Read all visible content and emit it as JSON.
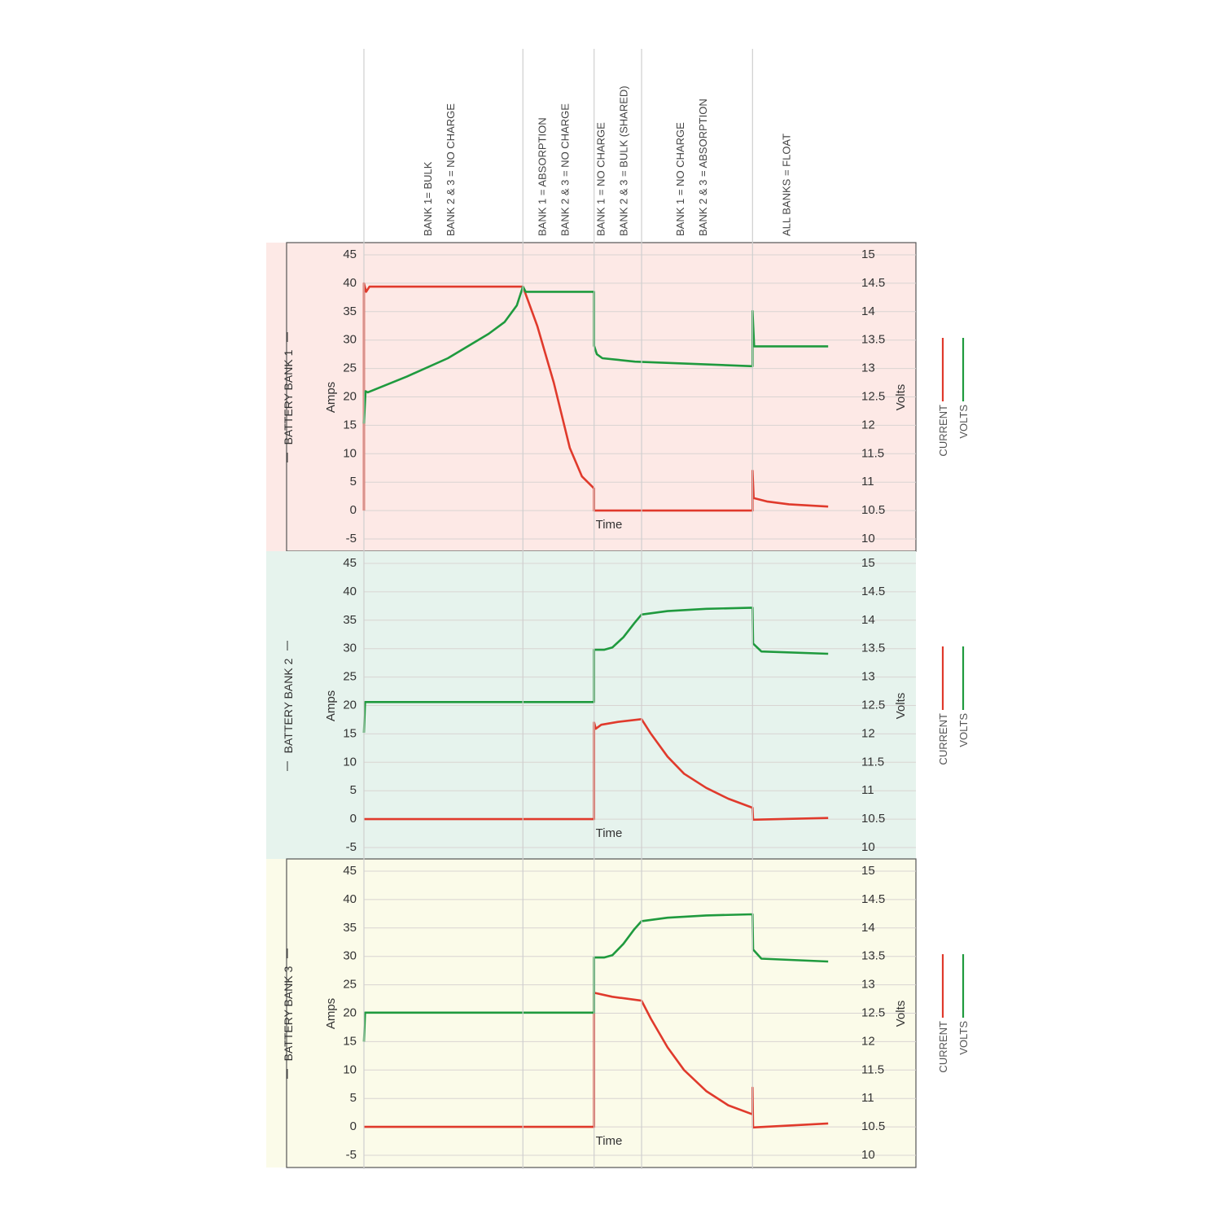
{
  "phases": [
    {
      "start": 0,
      "label": [
        "BANK 1= BULK",
        "BANK 2 & 3 = NO CHARGE"
      ]
    },
    {
      "start": 28.8,
      "label": [
        "BANK 1 = ABSORPTION",
        "BANK 2 & 3 = NO CHARGE"
      ]
    },
    {
      "start": 41.7,
      "label": [
        "BANK 1 = NO CHARGE",
        "BANK 2 & 3 = BULK (SHARED)"
      ]
    },
    {
      "start": 50.3,
      "label": [
        "BANK 1 = NO CHARGE",
        "BANK 2 & 3 = ABSORPTION"
      ]
    },
    {
      "start": 70.4,
      "label": [
        "ALL BANKS = FLOAT"
      ]
    }
  ],
  "chart_data": [
    {
      "type": "line",
      "title": "BATTERY BANK 1",
      "xlabel": "Time",
      "ylabel": "Amps",
      "y2label": "Volts",
      "background": "#fde9e6",
      "grid": true,
      "xlim": [
        0,
        100
      ],
      "ylim": [
        -5,
        45
      ],
      "yticks": [
        -5,
        0,
        5,
        10,
        15,
        20,
        25,
        30,
        35,
        40,
        45
      ],
      "y2lim": [
        10,
        15
      ],
      "y2ticks": [
        10,
        10.5,
        11,
        11.5,
        12,
        12.5,
        13,
        13.5,
        14,
        14.5,
        15
      ],
      "series": [
        {
          "name": "CURRENT",
          "color": "#e03a2c",
          "axis": "y",
          "x": [
            0,
            0,
            0.4,
            1,
            28.8,
            31.4,
            34.4,
            37.3,
            39.5,
            41.7,
            41.7,
            70.4,
            70.4,
            70.6,
            73,
            77,
            84.1
          ],
          "values": [
            0,
            40,
            38.5,
            39.4,
            39.4,
            32.5,
            22.5,
            11,
            6,
            3.9,
            0,
            0,
            7,
            2.2,
            1.6,
            1.1,
            0.7
          ]
        },
        {
          "name": "VOLTS",
          "color": "#1f9a3e",
          "axis": "y2",
          "x": [
            0,
            0.3,
            0.7,
            7.8,
            15.2,
            22.6,
            25.5,
            27.7,
            28.8,
            29.3,
            41.7,
            41.7,
            42.2,
            43.2,
            46.2,
            49.1,
            70.4,
            70.4,
            70.7,
            84.1
          ],
          "values": [
            12.03,
            12.6,
            12.58,
            12.86,
            13.18,
            13.61,
            13.82,
            14.11,
            14.44,
            14.35,
            14.35,
            13.4,
            13.25,
            13.18,
            13.15,
            13.12,
            13.04,
            14.01,
            13.39,
            13.39
          ]
        }
      ]
    },
    {
      "type": "line",
      "title": "BATTERY BANK 2",
      "xlabel": "Time",
      "ylabel": "Amps",
      "y2label": "Volts",
      "background": "#e6f3ed",
      "grid": true,
      "xlim": [
        0,
        100
      ],
      "ylim": [
        -5,
        45
      ],
      "yticks": [
        -5,
        0,
        5,
        10,
        15,
        20,
        25,
        30,
        35,
        40,
        45
      ],
      "y2lim": [
        10,
        15
      ],
      "y2ticks": [
        10,
        10.5,
        11,
        11.5,
        12,
        12.5,
        13,
        13.5,
        14,
        14.5,
        15
      ],
      "series": [
        {
          "name": "CURRENT",
          "color": "#e03a2c",
          "axis": "y",
          "x": [
            0,
            41.7,
            41.7,
            42,
            43,
            46,
            50.3,
            52,
            55,
            58,
            62,
            66,
            70.4,
            70.5,
            84.1
          ],
          "values": [
            0,
            0,
            17,
            15.9,
            16.6,
            17.1,
            17.6,
            15,
            11,
            8,
            5.5,
            3.6,
            2.0,
            -0.1,
            0.2
          ]
        },
        {
          "name": "VOLTS",
          "color": "#1f9a3e",
          "axis": "y2",
          "x": [
            0,
            0.2,
            41.7,
            41.7,
            43.5,
            45,
            47,
            49,
            50.3,
            55,
            62,
            70.4,
            70.5,
            72,
            84.1
          ],
          "values": [
            12.02,
            12.56,
            12.56,
            13.48,
            13.48,
            13.52,
            13.7,
            13.95,
            14.1,
            14.16,
            14.2,
            14.22,
            13.59,
            13.45,
            13.41
          ]
        }
      ]
    },
    {
      "type": "line",
      "title": "BATTERY BANK 3",
      "xlabel": "Time",
      "ylabel": "Amps",
      "y2label": "Volts",
      "background": "#fbfbe9",
      "grid": true,
      "xlim": [
        0,
        100
      ],
      "ylim": [
        -5,
        45
      ],
      "yticks": [
        -5,
        0,
        5,
        10,
        15,
        20,
        25,
        30,
        35,
        40,
        45
      ],
      "y2lim": [
        10,
        15
      ],
      "y2ticks": [
        10,
        10.5,
        11,
        11.5,
        12,
        12.5,
        13,
        13.5,
        14,
        14.5,
        15
      ],
      "series": [
        {
          "name": "CURRENT",
          "color": "#e03a2c",
          "axis": "y",
          "x": [
            0,
            41.7,
            41.7,
            45,
            50.3,
            52,
            55,
            58,
            62,
            66,
            70.4,
            70.4,
            70.5,
            84.1
          ],
          "values": [
            0,
            0,
            23.6,
            22.9,
            22.2,
            19,
            14,
            10,
            6.3,
            3.8,
            2.2,
            6.9,
            -0.1,
            0.6
          ]
        },
        {
          "name": "VOLTS",
          "color": "#1f9a3e",
          "axis": "y2",
          "x": [
            0,
            0.2,
            41.7,
            41.7,
            43.5,
            45,
            47,
            49,
            50.3,
            55,
            62,
            70.4,
            70.5,
            72,
            84.1
          ],
          "values": [
            12.0,
            12.51,
            12.51,
            13.48,
            13.48,
            13.52,
            13.72,
            13.98,
            14.12,
            14.18,
            14.22,
            14.24,
            13.62,
            13.46,
            13.41
          ]
        }
      ]
    }
  ]
}
